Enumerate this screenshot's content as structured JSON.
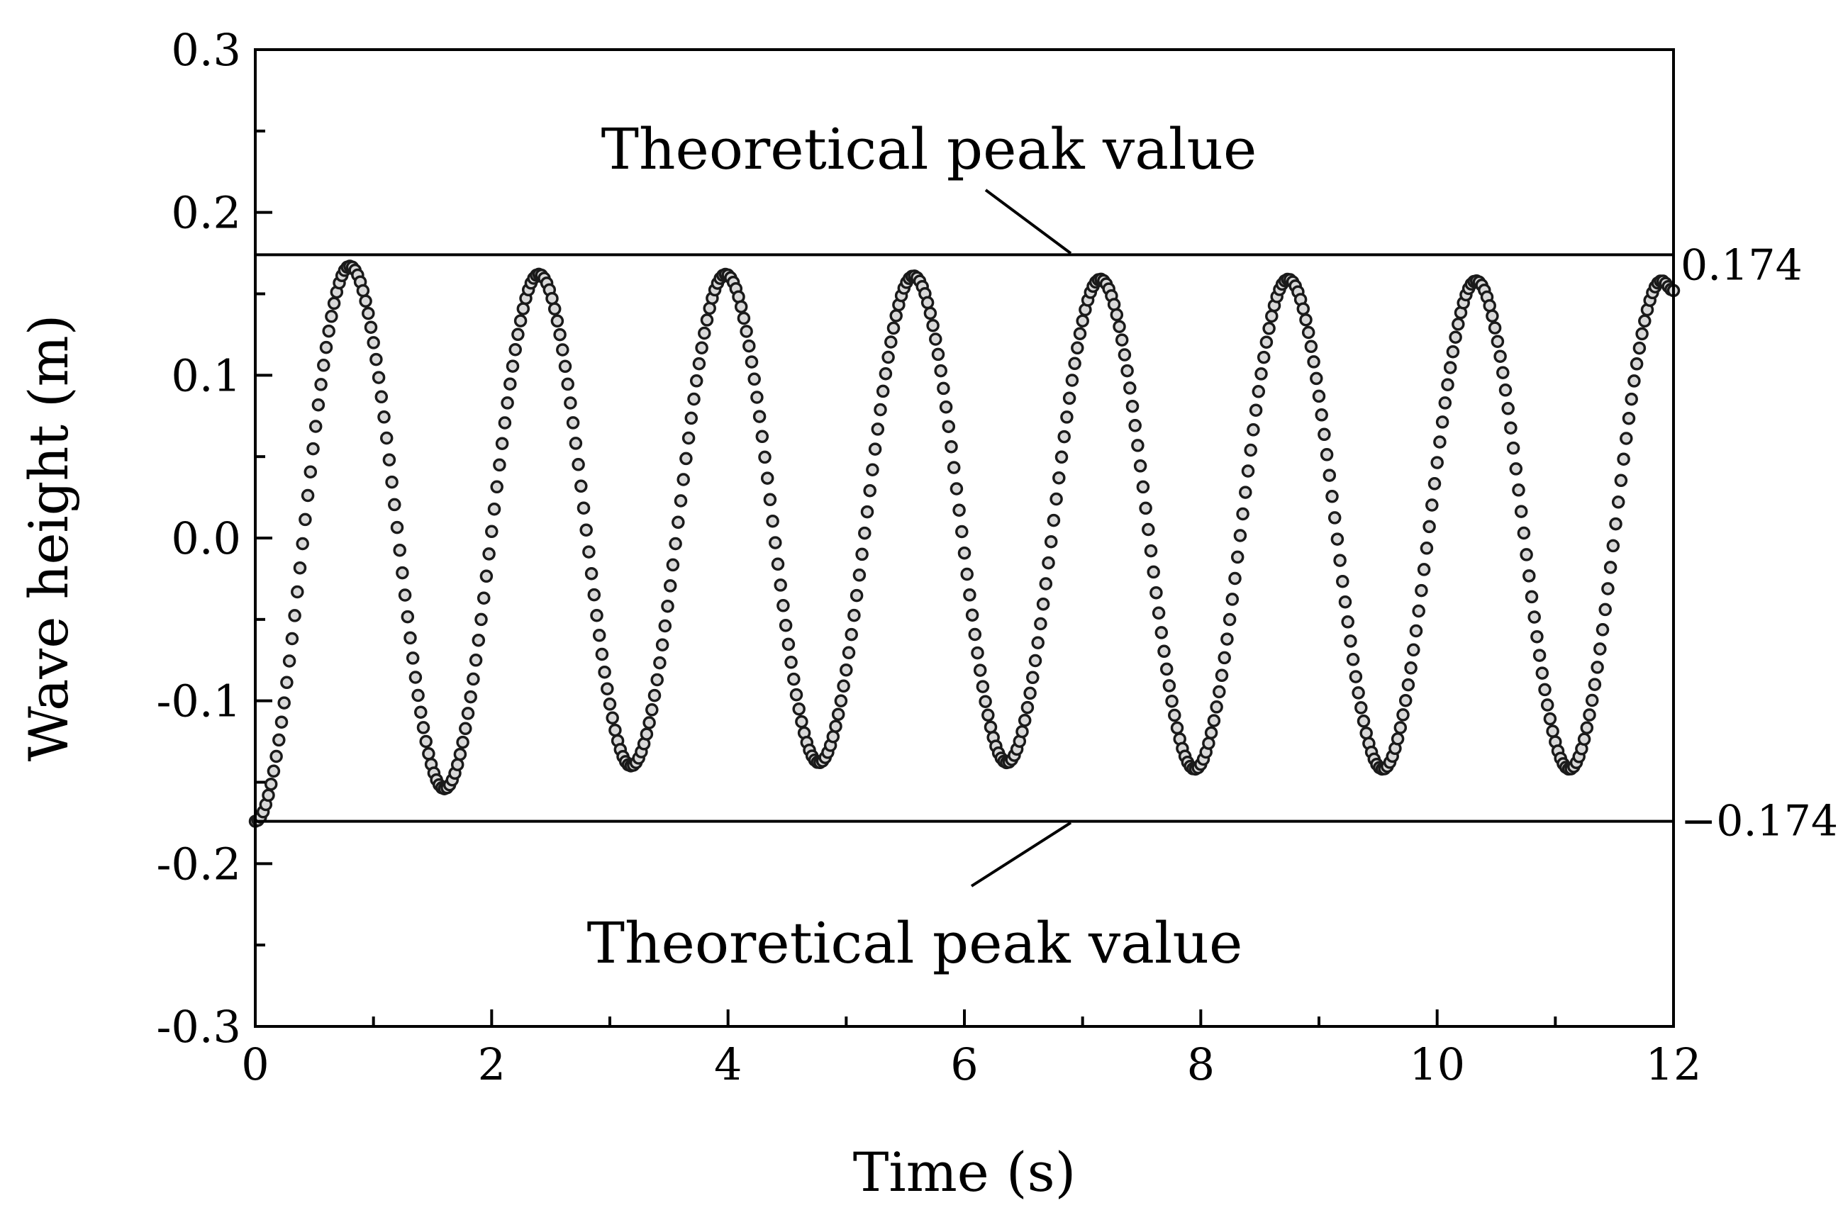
{
  "chart_data": {
    "type": "scatter",
    "xlabel": "Time (s)",
    "ylabel": "Wave height (m)",
    "xlim": [
      0,
      12
    ],
    "ylim": [
      -0.3,
      0.3
    ],
    "x_ticks": [
      "0",
      "2",
      "4",
      "6",
      "8",
      "10",
      "12"
    ],
    "y_ticks": [
      "-0.3",
      "-0.2",
      "-0.1",
      "0.0",
      "0.1",
      "0.2",
      "0.3"
    ],
    "x_minor_step": 1,
    "y_minor_step": 0.05,
    "grid": false,
    "legend": "none",
    "reference_lines": [
      {
        "y": 0.174,
        "label": "0.174"
      },
      {
        "y": -0.174,
        "label": "−0.174"
      }
    ],
    "annotations": [
      {
        "text": "Theoretical peak value",
        "points_to": {
          "x": 6.9,
          "y": 0.174
        }
      },
      {
        "text": "Theoretical peak value",
        "points_to": {
          "x": 6.9,
          "y": -0.174
        }
      }
    ],
    "series": [
      {
        "marker": "open-circle",
        "color": "#1a1a1a",
        "marker_fill": "#d9d9d9",
        "x": [
          0,
          0.8,
          1.6,
          2.4,
          3.18,
          3.98,
          4.77,
          5.57,
          6.36,
          7.15,
          7.95,
          8.74,
          9.54,
          10.33,
          11.12,
          11.9,
          12.0
        ],
        "y": [
          -0.174,
          0.167,
          -0.154,
          0.162,
          -0.14,
          0.162,
          -0.138,
          0.161,
          -0.138,
          0.159,
          -0.142,
          0.159,
          -0.142,
          0.158,
          -0.142,
          0.158,
          0.152
        ]
      }
    ]
  }
}
